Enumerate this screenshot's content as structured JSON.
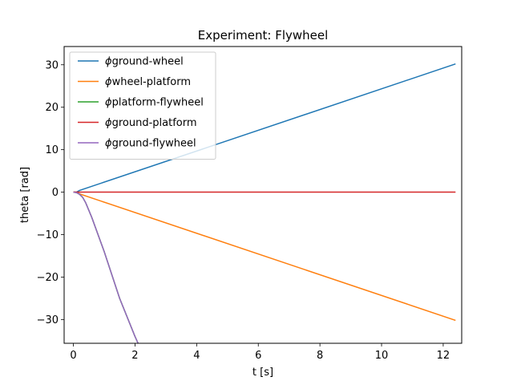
{
  "chart_data": {
    "type": "line",
    "title": "Experiment: Flywheel",
    "xlabel": "t [s]",
    "ylabel": "theta [rad]",
    "xlim": [
      -0.3,
      12.6
    ],
    "ylim": [
      -35.6,
      34.3
    ],
    "xticks": [
      0,
      2,
      4,
      6,
      8,
      10,
      12
    ],
    "yticks": [
      -30,
      -20,
      -10,
      0,
      10,
      20,
      30
    ],
    "grid": false,
    "legend_position": "top-left",
    "series": [
      {
        "name": "ground-wheel",
        "color": "#1f77b4",
        "x": [
          0.0,
          0.1,
          0.2,
          12.4
        ],
        "y": [
          0.0,
          0.0,
          0.4,
          30.2
        ]
      },
      {
        "name": "wheel-platform",
        "color": "#ff7f0e",
        "x": [
          0.0,
          0.1,
          0.2,
          12.4
        ],
        "y": [
          0.0,
          0.0,
          -0.4,
          -30.2
        ]
      },
      {
        "name": "platform-flywheel",
        "color": "#2ca02c",
        "x": [
          0.0,
          0.1,
          0.2,
          0.3,
          0.4,
          0.6,
          1.0,
          1.5,
          2.0,
          2.1
        ],
        "y": [
          0.0,
          -0.1,
          -0.5,
          -1.2,
          -2.5,
          -6.0,
          -14.0,
          -25.0,
          -34.0,
          -35.6
        ]
      },
      {
        "name": "ground-platform",
        "color": "#d62728",
        "x": [
          0.0,
          12.4
        ],
        "y": [
          0.0,
          0.0
        ]
      },
      {
        "name": "ground-flywheel",
        "color": "#9467bd",
        "x": [
          0.0,
          0.1,
          0.2,
          0.3,
          0.4,
          0.6,
          1.0,
          1.5,
          2.0,
          2.1
        ],
        "y": [
          0.0,
          -0.1,
          -0.5,
          -1.2,
          -2.5,
          -6.0,
          -14.0,
          -25.0,
          -34.0,
          -35.6
        ]
      }
    ]
  }
}
